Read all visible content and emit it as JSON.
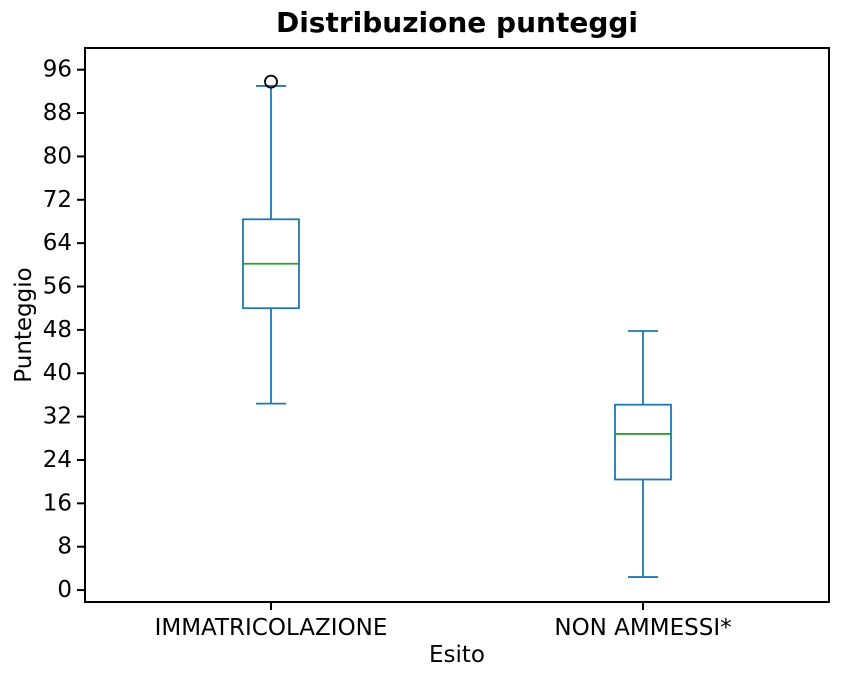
{
  "chart_data": {
    "type": "boxplot",
    "title": "Distribuzione punteggi",
    "xlabel": "Esito",
    "ylabel": "Punteggio",
    "categories": [
      "IMMATRICOLAZIONE",
      "NON AMMESSI*"
    ],
    "series": [
      {
        "name": "IMMATRICOLAZIONE",
        "whisker_low": 34.4,
        "q1": 52.0,
        "median": 60.2,
        "q3": 68.4,
        "whisker_high": 93.0,
        "outliers": [
          93.8
        ]
      },
      {
        "name": "NON AMMESSI*",
        "whisker_low": 2.4,
        "q1": 20.4,
        "median": 28.8,
        "q3": 34.2,
        "whisker_high": 47.8,
        "outliers": []
      }
    ],
    "yticks": [
      0,
      8,
      16,
      24,
      32,
      40,
      48,
      56,
      64,
      72,
      80,
      88,
      96
    ],
    "ylim": [
      -2.2,
      100
    ],
    "xlim": [
      0.5,
      2.5
    ],
    "positions": [
      1,
      2
    ],
    "grid": false,
    "legend": null,
    "colors": {
      "box": "#1f77b4",
      "median": "#2ca02c",
      "outlier_edge": "#000000",
      "axis": "#000000",
      "background": "#ffffff"
    }
  }
}
